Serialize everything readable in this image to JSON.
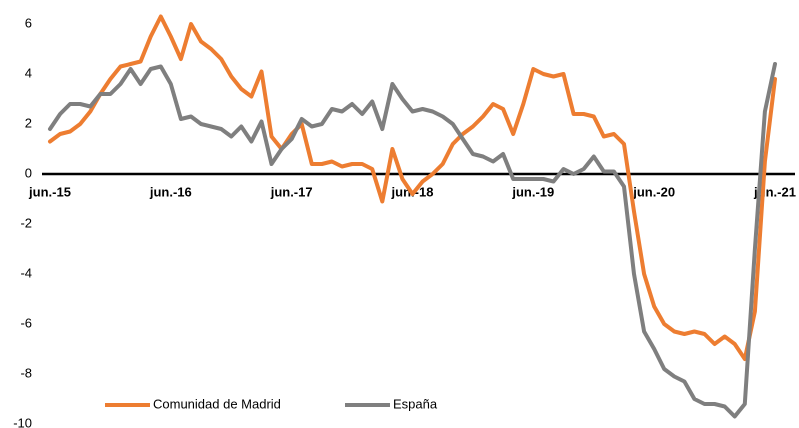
{
  "chart_data": {
    "type": "line",
    "categories": [
      "jun.-15",
      null,
      null,
      null,
      null,
      null,
      null,
      null,
      null,
      null,
      null,
      null,
      "jun.-16",
      null,
      null,
      null,
      null,
      null,
      null,
      null,
      null,
      null,
      null,
      null,
      "jun.-17",
      null,
      null,
      null,
      null,
      null,
      null,
      null,
      null,
      null,
      null,
      null,
      "jun.-18",
      null,
      null,
      null,
      null,
      null,
      null,
      null,
      null,
      null,
      null,
      null,
      "jun.-19",
      null,
      null,
      null,
      null,
      null,
      null,
      null,
      null,
      null,
      null,
      null,
      "jun.-20",
      null,
      null,
      null,
      null,
      null,
      null,
      null,
      null,
      null,
      null,
      null,
      "jun.-21"
    ],
    "series": [
      {
        "name": "Comunidad de Madrid",
        "color": "#ed7d31",
        "values": [
          1.3,
          1.6,
          1.7,
          2.0,
          2.5,
          3.2,
          3.8,
          4.3,
          4.4,
          4.5,
          5.5,
          6.3,
          5.5,
          4.6,
          6.0,
          5.3,
          5.0,
          4.6,
          3.9,
          3.4,
          3.1,
          4.1,
          1.5,
          1.0,
          1.6,
          2.0,
          0.4,
          0.4,
          0.5,
          0.3,
          0.4,
          0.4,
          0.2,
          -1.1,
          1.0,
          -0.2,
          -0.8,
          -0.3,
          0.0,
          0.4,
          1.2,
          1.6,
          1.9,
          2.3,
          2.8,
          2.6,
          1.6,
          2.8,
          4.2,
          4.0,
          3.9,
          4.0,
          2.4,
          2.4,
          2.3,
          1.5,
          1.6,
          1.2,
          -1.5,
          -4.0,
          -5.3,
          -6.0,
          -6.3,
          -6.4,
          -6.3,
          -6.4,
          -6.8,
          -6.5,
          -6.8,
          -7.4,
          -5.5,
          0.5,
          3.8
        ]
      },
      {
        "name": "España",
        "color": "#7f7f7f",
        "values": [
          1.8,
          2.4,
          2.8,
          2.8,
          2.7,
          3.2,
          3.2,
          3.6,
          4.2,
          3.6,
          4.2,
          4.3,
          3.6,
          2.2,
          2.3,
          2.0,
          1.9,
          1.8,
          1.5,
          1.9,
          1.3,
          2.1,
          0.4,
          1.0,
          1.4,
          2.2,
          1.9,
          2.0,
          2.6,
          2.5,
          2.8,
          2.4,
          2.9,
          1.8,
          3.6,
          3.0,
          2.5,
          2.6,
          2.5,
          2.3,
          2.0,
          1.4,
          0.8,
          0.7,
          0.5,
          0.8,
          -0.2,
          -0.2,
          -0.2,
          -0.2,
          -0.3,
          0.2,
          0.0,
          0.2,
          0.7,
          0.1,
          0.1,
          -0.5,
          -4.0,
          -6.3,
          -7.0,
          -7.8,
          -8.1,
          -8.3,
          -9.0,
          -9.2,
          -9.2,
          -9.3,
          -9.7,
          -9.2,
          -3.0,
          2.5,
          4.4
        ]
      }
    ],
    "ylim": [
      -10,
      6.5
    ],
    "yticks": [
      -10,
      -8,
      -6,
      -4,
      -2,
      0,
      2,
      4,
      6
    ],
    "grid": false
  }
}
